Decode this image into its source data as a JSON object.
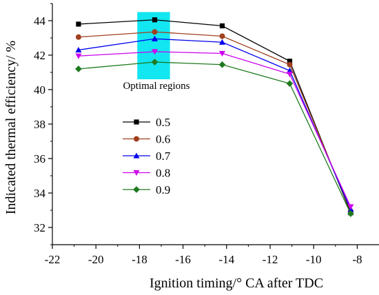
{
  "chart_data": {
    "type": "line",
    "xlabel": "Ignition timing/° CA after TDC",
    "ylabel": "Indicated thermal efficiency/ %",
    "xlim": [
      -22,
      -7
    ],
    "ylim": [
      31,
      45
    ],
    "xticks": [
      -22,
      -20,
      -18,
      -16,
      -14,
      -12,
      -10,
      -8
    ],
    "yticks": [
      32,
      34,
      36,
      38,
      40,
      42,
      44
    ],
    "x": [
      -20.8,
      -17.3,
      -14.2,
      -11.1,
      -8.3
    ],
    "series": [
      {
        "name": "0.5",
        "color": "#000000",
        "marker": "square",
        "values": [
          43.8,
          44.05,
          43.7,
          41.65,
          32.85
        ]
      },
      {
        "name": "0.6",
        "color": "#a0401e",
        "marker": "circle",
        "values": [
          43.05,
          43.35,
          43.1,
          41.45,
          32.95
        ]
      },
      {
        "name": "0.7",
        "color": "#0000ee",
        "marker": "triangle-up",
        "values": [
          42.3,
          42.95,
          42.75,
          41.1,
          33.05
        ]
      },
      {
        "name": "0.8",
        "color": "#cc00ee",
        "marker": "triangle-down",
        "values": [
          41.95,
          42.2,
          42.1,
          40.9,
          33.2
        ]
      },
      {
        "name": "0.9",
        "color": "#1e7a1e",
        "marker": "diamond",
        "values": [
          41.2,
          41.6,
          41.45,
          40.35,
          32.8
        ]
      }
    ],
    "highlight_region": {
      "x": [
        -18.1,
        -16.6
      ],
      "y": [
        40.6,
        44.5
      ],
      "color": "#12e6f0"
    },
    "annotation": "Optimal regions",
    "legend_position": "center-left",
    "grid": false
  }
}
